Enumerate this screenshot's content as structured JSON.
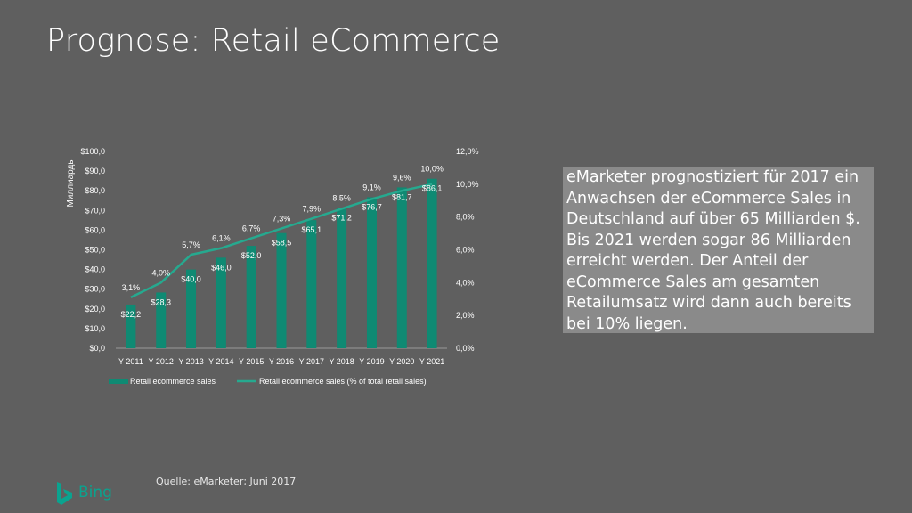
{
  "slide": {
    "title": "Prognose: Retail eCommerce",
    "textbox": "eMarketer prognostiziert für 2017 ein Anwachsen der eCommerce Sales in Deutschland auf über 65 Milliarden $. Bis 2021 werden sogar 86 Milliarden erreicht werden. Der Anteil der eCommerce Sales am gesamten Retailumsatz wird dann auch bereits bei 10% liegen.",
    "source": "Quelle: eMarketer; Juni 2017",
    "logo_text": "Bing"
  },
  "colors": {
    "background": "#5f5f5f",
    "bar": "#0f8a73",
    "line": "#26a98f",
    "textbox_bg": "#8a8a8a"
  },
  "chart_data": {
    "type": "bar",
    "title": "",
    "ylabel": "Миллиарды",
    "categories": [
      "Y 2011",
      "Y 2012",
      "Y 2013",
      "Y 2014",
      "Y 2015",
      "Y 2016",
      "Y 2017",
      "Y 2018",
      "Y 2019",
      "Y 2020",
      "Y 2021"
    ],
    "ylim": [
      0,
      100
    ],
    "y2lim": [
      0,
      12
    ],
    "y_ticks": [
      "$0,0",
      "$10,0",
      "$20,0",
      "$30,0",
      "$40,0",
      "$50,0",
      "$60,0",
      "$70,0",
      "$80,0",
      "$90,0",
      "$100,0"
    ],
    "y2_ticks": [
      "0,0%",
      "2,0%",
      "4,0%",
      "6,0%",
      "8,0%",
      "10,0%",
      "12,0%"
    ],
    "legend_position": "bottom",
    "grid": false,
    "series": [
      {
        "name": "Retail ecommerce sales",
        "type": "bar",
        "axis": "left",
        "values": [
          22.2,
          28.3,
          40.0,
          46.0,
          52.0,
          58.5,
          65.1,
          71.2,
          76.7,
          81.7,
          86.1
        ],
        "labels": [
          "$22,2",
          "$28,3",
          "$40,0",
          "$46,0",
          "$52,0",
          "$58,5",
          "$65,1",
          "$71,2",
          "$76,7",
          "$81,7",
          "$86,1"
        ]
      },
      {
        "name": "Retail ecommerce sales (% of total retail sales)",
        "type": "line",
        "axis": "right",
        "values": [
          3.1,
          4.0,
          5.7,
          6.1,
          6.7,
          7.3,
          7.9,
          8.5,
          9.1,
          9.6,
          10.0
        ],
        "labels": [
          "3,1%",
          "4,0%",
          "5,7%",
          "6,1%",
          "6,7%",
          "7,3%",
          "7,9%",
          "8,5%",
          "9,1%",
          "9,6%",
          "10,0%"
        ]
      }
    ]
  }
}
